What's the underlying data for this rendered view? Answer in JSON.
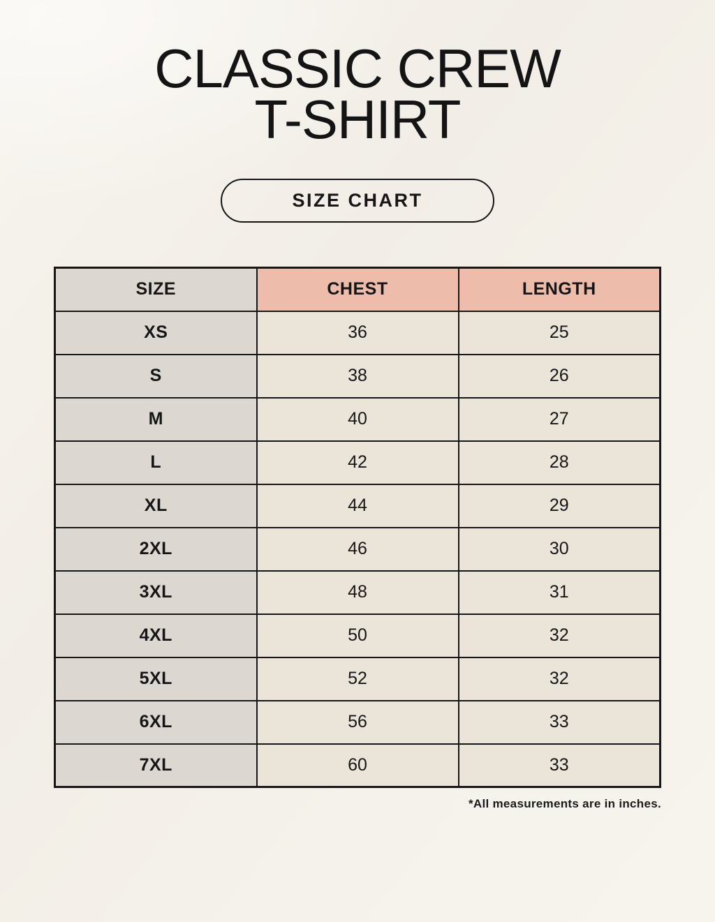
{
  "header": {
    "title_line1": "CLASSIC CREW",
    "title_line2": "T-SHIRT",
    "button_label": "SIZE CHART"
  },
  "chart_data": {
    "type": "table",
    "title": "CLASSIC CREW T-SHIRT",
    "columns": [
      "SIZE",
      "CHEST",
      "LENGTH"
    ],
    "rows": [
      [
        "XS",
        "36",
        "25"
      ],
      [
        "S",
        "38",
        "26"
      ],
      [
        "M",
        "40",
        "27"
      ],
      [
        "L",
        "42",
        "28"
      ],
      [
        "XL",
        "44",
        "29"
      ],
      [
        "2XL",
        "46",
        "30"
      ],
      [
        "3XL",
        "48",
        "31"
      ],
      [
        "4XL",
        "50",
        "32"
      ],
      [
        "5XL",
        "52",
        "32"
      ],
      [
        "6XL",
        "56",
        "33"
      ],
      [
        "7XL",
        "60",
        "33"
      ]
    ],
    "footnote": "*All measurements are in inches."
  },
  "colors": {
    "background": "#f4f1ea",
    "size_column_bg": "#ddd7d1",
    "measure_header_bg": "#edbcab",
    "body_cell_bg": "#eae4d9",
    "border": "#161616",
    "text": "#161616"
  }
}
